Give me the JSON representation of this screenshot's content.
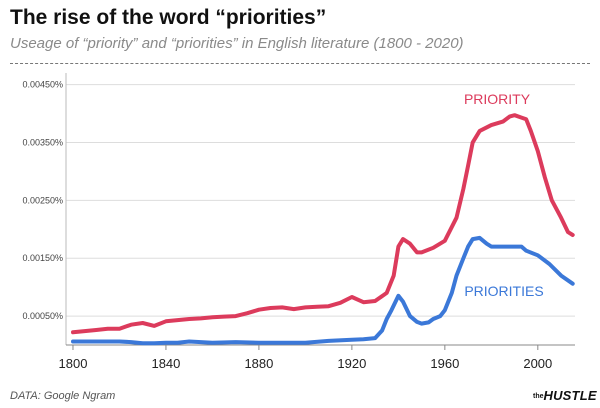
{
  "header": {
    "title": "The rise of the word “priorities”",
    "subtitle": "Useage of  “priority” and “priorities” in English literature (1800 - 2020)"
  },
  "footer": {
    "source": "DATA: Google Ngram",
    "logo_the": "the",
    "logo_main": "HUSTLE"
  },
  "chart_data": {
    "type": "line",
    "title": "The rise of the word “priorities”",
    "subtitle": "Useage of  “priority” and “priorities” in English literature (1800 - 2020)",
    "xlabel": "",
    "ylabel": "",
    "xlim": [
      1797,
      2016
    ],
    "ylim": [
      0,
      0.0047
    ],
    "xticks": [
      1800,
      1840,
      1880,
      1920,
      1960,
      2000
    ],
    "xtick_labels": [
      "1800",
      "1840",
      "1880",
      "1920",
      "1960",
      "2000"
    ],
    "yticks": [
      0.0005,
      0.0015,
      0.0025,
      0.0035,
      0.0045
    ],
    "ytick_labels": [
      "0.00050%",
      "0.00150%",
      "0.00250%",
      "0.00350%",
      "0.00450%"
    ],
    "grid": {
      "x": false,
      "y": true
    },
    "legend": "inline labels on lines",
    "series": [
      {
        "name": "PRIORITY",
        "color": "#dc3b5c",
        "x": [
          1800,
          1805,
          1810,
          1815,
          1820,
          1825,
          1830,
          1835,
          1840,
          1845,
          1850,
          1855,
          1860,
          1865,
          1870,
          1875,
          1880,
          1885,
          1890,
          1895,
          1900,
          1905,
          1910,
          1915,
          1920,
          1925,
          1930,
          1935,
          1938,
          1940,
          1942,
          1945,
          1948,
          1950,
          1955,
          1960,
          1965,
          1968,
          1970,
          1972,
          1975,
          1980,
          1985,
          1988,
          1990,
          1993,
          1995,
          1997,
          2000,
          2003,
          2006,
          2010,
          2013,
          2015
        ],
        "y": [
          0.00022,
          0.00024,
          0.00026,
          0.00028,
          0.00028,
          0.00035,
          0.00038,
          0.00033,
          0.00041,
          0.00043,
          0.00045,
          0.00046,
          0.00048,
          0.00049,
          0.0005,
          0.00055,
          0.00061,
          0.00064,
          0.00065,
          0.00062,
          0.00065,
          0.00066,
          0.00067,
          0.00073,
          0.00083,
          0.00074,
          0.00076,
          0.0009,
          0.0012,
          0.0017,
          0.00183,
          0.00175,
          0.0016,
          0.0016,
          0.00168,
          0.0018,
          0.0022,
          0.0027,
          0.0031,
          0.0035,
          0.0037,
          0.0038,
          0.00386,
          0.00395,
          0.00397,
          0.00393,
          0.0039,
          0.0037,
          0.00335,
          0.0029,
          0.0025,
          0.0022,
          0.00195,
          0.0019
        ]
      },
      {
        "name": "PRIORITIES",
        "color": "#3b78d8",
        "x": [
          1800,
          1805,
          1810,
          1815,
          1820,
          1825,
          1830,
          1835,
          1840,
          1845,
          1850,
          1855,
          1860,
          1870,
          1880,
          1890,
          1900,
          1910,
          1920,
          1925,
          1930,
          1933,
          1935,
          1937,
          1940,
          1942,
          1945,
          1948,
          1950,
          1953,
          1955,
          1958,
          1960,
          1963,
          1965,
          1968,
          1970,
          1972,
          1975,
          1978,
          1980,
          1985,
          1990,
          1993,
          1995,
          2000,
          2005,
          2010,
          2015
        ],
        "y": [
          6e-05,
          6e-05,
          6e-05,
          6e-05,
          6e-05,
          5e-05,
          3e-05,
          3e-05,
          4e-05,
          4e-05,
          6e-05,
          5e-05,
          4e-05,
          5e-05,
          4e-05,
          4e-05,
          4e-05,
          7e-05,
          9e-05,
          0.0001,
          0.00012,
          0.00025,
          0.00045,
          0.0006,
          0.00085,
          0.00075,
          0.0005,
          0.0004,
          0.00037,
          0.00039,
          0.00045,
          0.0005,
          0.0006,
          0.0009,
          0.0012,
          0.0015,
          0.0017,
          0.00183,
          0.00185,
          0.00175,
          0.0017,
          0.0017,
          0.0017,
          0.0017,
          0.00163,
          0.00155,
          0.0014,
          0.0012,
          0.00106
        ]
      }
    ]
  }
}
